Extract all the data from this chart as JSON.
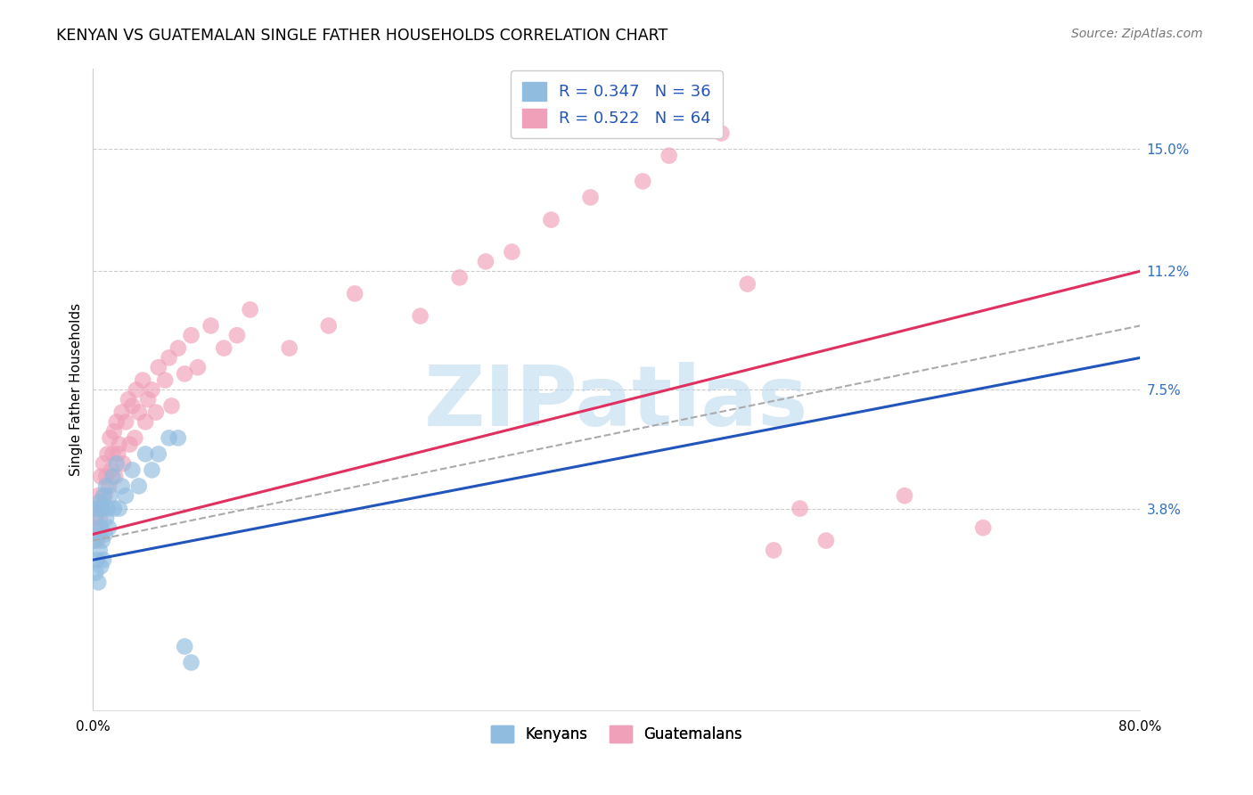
{
  "title": "KENYAN VS GUATEMALAN SINGLE FATHER HOUSEHOLDS CORRELATION CHART",
  "source": "Source: ZipAtlas.com",
  "ylabel": "Single Father Households",
  "watermark": "ZIPatlas",
  "xlim": [
    0.0,
    0.8
  ],
  "ylim": [
    -0.025,
    0.175
  ],
  "ytick_right_labels": [
    "15.0%",
    "11.2%",
    "7.5%",
    "3.8%"
  ],
  "ytick_right_values": [
    0.15,
    0.112,
    0.075,
    0.038
  ],
  "kenyan_color": "#90bce0",
  "guatemalan_color": "#f0a0b8",
  "kenyan_line_color": "#2255bb",
  "guatemalan_line_color": "#e03060",
  "background_color": "#ffffff",
  "grid_color": "#cccccc",
  "kenyan_line_x0": 0.0,
  "kenyan_line_y0": 0.022,
  "kenyan_line_x1": 0.8,
  "kenyan_line_y1": 0.085,
  "guatemalan_line_x0": 0.0,
  "guatemalan_line_y0": 0.03,
  "guatemalan_line_x1": 0.8,
  "guatemalan_line_y1": 0.112,
  "grey_line_x0": 0.0,
  "grey_line_y0": 0.028,
  "grey_line_x1": 0.8,
  "grey_line_y1": 0.095,
  "kenyan_x": [
    0.001,
    0.002,
    0.002,
    0.003,
    0.003,
    0.004,
    0.004,
    0.005,
    0.005,
    0.006,
    0.006,
    0.007,
    0.007,
    0.008,
    0.008,
    0.009,
    0.01,
    0.01,
    0.011,
    0.012,
    0.013,
    0.015,
    0.016,
    0.018,
    0.02,
    0.022,
    0.025,
    0.03,
    0.035,
    0.04,
    0.045,
    0.05,
    0.058,
    0.065,
    0.07,
    0.075
  ],
  "kenyan_y": [
    0.028,
    0.018,
    0.035,
    0.022,
    0.038,
    0.015,
    0.03,
    0.025,
    0.04,
    0.02,
    0.032,
    0.028,
    0.038,
    0.022,
    0.042,
    0.03,
    0.035,
    0.045,
    0.038,
    0.032,
    0.042,
    0.048,
    0.038,
    0.052,
    0.038,
    0.045,
    0.042,
    0.05,
    0.045,
    0.055,
    0.05,
    0.055,
    0.06,
    0.06,
    -0.005,
    -0.01
  ],
  "guatemalan_x": [
    0.001,
    0.002,
    0.003,
    0.004,
    0.005,
    0.006,
    0.007,
    0.008,
    0.009,
    0.01,
    0.011,
    0.012,
    0.013,
    0.014,
    0.015,
    0.016,
    0.017,
    0.018,
    0.019,
    0.02,
    0.022,
    0.023,
    0.025,
    0.027,
    0.028,
    0.03,
    0.032,
    0.033,
    0.035,
    0.038,
    0.04,
    0.042,
    0.045,
    0.048,
    0.05,
    0.055,
    0.058,
    0.06,
    0.065,
    0.07,
    0.075,
    0.08,
    0.09,
    0.1,
    0.11,
    0.12,
    0.15,
    0.18,
    0.2,
    0.25,
    0.28,
    0.3,
    0.32,
    0.35,
    0.38,
    0.42,
    0.44,
    0.48,
    0.5,
    0.52,
    0.54,
    0.56,
    0.62,
    0.68
  ],
  "guatemalan_y": [
    0.032,
    0.038,
    0.028,
    0.042,
    0.035,
    0.048,
    0.038,
    0.052,
    0.042,
    0.048,
    0.055,
    0.045,
    0.06,
    0.05,
    0.055,
    0.062,
    0.048,
    0.065,
    0.055,
    0.058,
    0.068,
    0.052,
    0.065,
    0.072,
    0.058,
    0.07,
    0.06,
    0.075,
    0.068,
    0.078,
    0.065,
    0.072,
    0.075,
    0.068,
    0.082,
    0.078,
    0.085,
    0.07,
    0.088,
    0.08,
    0.092,
    0.082,
    0.095,
    0.088,
    0.092,
    0.1,
    0.088,
    0.095,
    0.105,
    0.098,
    0.11,
    0.115,
    0.118,
    0.128,
    0.135,
    0.14,
    0.148,
    0.155,
    0.108,
    0.025,
    0.038,
    0.028,
    0.042,
    0.032
  ]
}
